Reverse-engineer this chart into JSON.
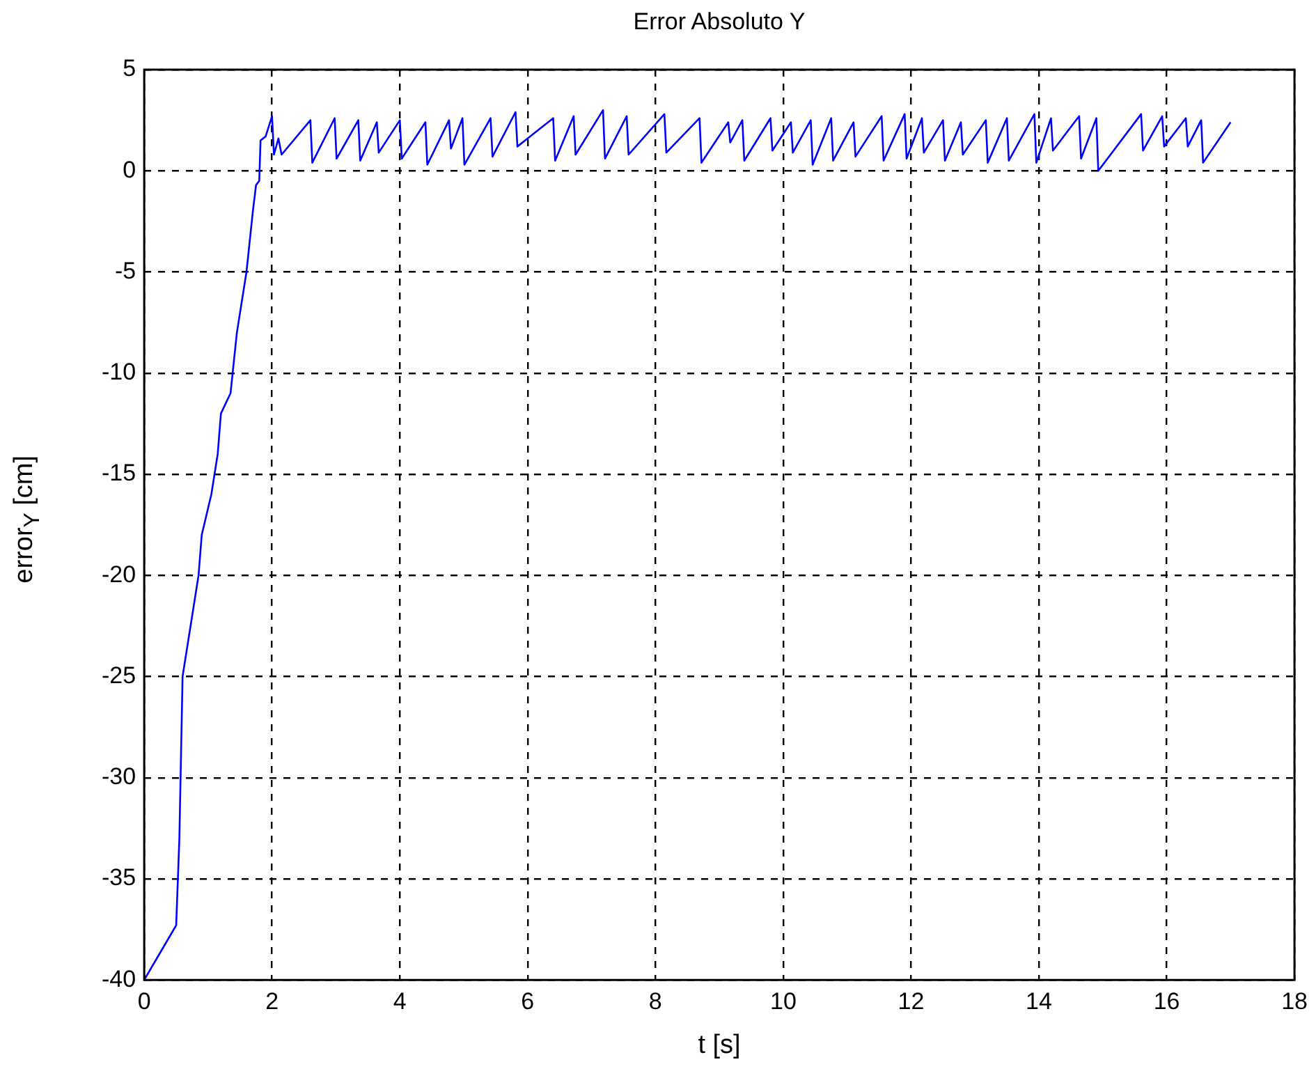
{
  "chart_data": {
    "type": "line",
    "title": "Error Absoluto Y",
    "xlabel": "t [s]",
    "ylabel": "error$_{Y}$ [cm]",
    "x": [
      0,
      0.5,
      0.55,
      0.6,
      0.85,
      0.9,
      1.05,
      1.15,
      1.2,
      1.35,
      1.45,
      1.6,
      1.7,
      1.75,
      1.8,
      1.82,
      1.9,
      2.0,
      2.03,
      2.1,
      2.15,
      2.6,
      2.63,
      2.98,
      3.01,
      3.35,
      3.38,
      3.64,
      3.67,
      4.0,
      4.03,
      4.4,
      4.43,
      4.77,
      4.8,
      4.98,
      5.01,
      5.42,
      5.45,
      5.81,
      5.84,
      6.4,
      6.43,
      6.72,
      6.75,
      7.18,
      7.21,
      7.55,
      7.58,
      8.14,
      8.17,
      8.69,
      8.72,
      9.14,
      9.17,
      9.36,
      9.39,
      9.8,
      9.83,
      10.12,
      10.15,
      10.43,
      10.46,
      10.75,
      10.78,
      11.1,
      11.13,
      11.54,
      11.57,
      11.9,
      11.93,
      12.17,
      12.2,
      12.5,
      12.53,
      12.78,
      12.81,
      13.17,
      13.2,
      13.5,
      13.53,
      13.93,
      13.96,
      14.19,
      14.22,
      14.63,
      14.66,
      14.9,
      14.93,
      15.6,
      15.63,
      15.93,
      15.96,
      16.3,
      16.33,
      16.54,
      16.57,
      17.0
    ],
    "series": [
      {
        "color": "#0000ff",
        "values": [
          -40,
          -37.3,
          -33,
          -25,
          -20,
          -18,
          -16,
          -14,
          -12,
          -11,
          -8,
          -5,
          -2,
          -0.7,
          -0.5,
          1.5,
          1.7,
          2.7,
          0.8,
          1.6,
          0.8,
          2.5,
          0.4,
          2.6,
          0.6,
          2.5,
          0.5,
          2.4,
          0.9,
          2.5,
          0.6,
          2.4,
          0.3,
          2.5,
          1.1,
          2.6,
          0.3,
          2.6,
          0.7,
          2.9,
          1.2,
          2.6,
          0.5,
          2.7,
          0.8,
          3.0,
          0.6,
          2.7,
          0.8,
          2.8,
          0.9,
          2.6,
          0.4,
          2.4,
          1.4,
          2.5,
          0.5,
          2.6,
          1.0,
          2.4,
          0.9,
          2.5,
          0.3,
          2.6,
          0.5,
          2.4,
          0.7,
          2.7,
          0.5,
          2.8,
          0.6,
          2.6,
          0.9,
          2.5,
          0.5,
          2.4,
          0.8,
          2.5,
          0.4,
          2.6,
          0.5,
          2.8,
          0.4,
          2.6,
          1.0,
          2.7,
          0.6,
          2.6,
          0.0,
          2.8,
          1.0,
          2.7,
          1.2,
          2.6,
          1.2,
          2.5,
          0.4,
          2.4
        ]
      }
    ],
    "xlim": [
      0,
      18
    ],
    "xticks": [
      0,
      2,
      4,
      6,
      8,
      10,
      12,
      14,
      16,
      18
    ],
    "ylim": [
      -40,
      5
    ],
    "yticks": [
      -40,
      -35,
      -30,
      -25,
      -20,
      -15,
      -10,
      -5,
      0,
      5
    ],
    "grid": true,
    "line_style": "solid",
    "marker": "none"
  }
}
